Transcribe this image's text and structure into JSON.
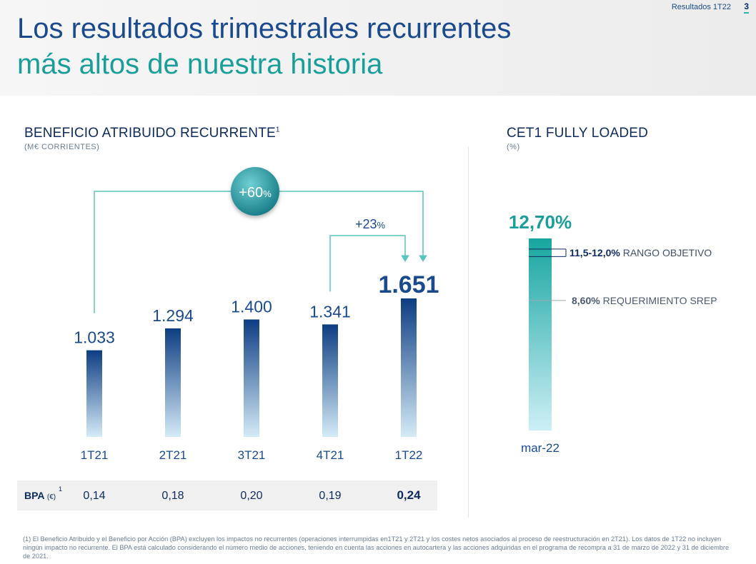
{
  "header": {
    "title_line1": "Los resultados trimestrales recurrentes",
    "title_line2": "más altos de nuestra historia",
    "section": "Resultados 1T22",
    "page": "3"
  },
  "left_panel": {
    "title": "BENEFICIO ATRIBUIDO RECURRENTE",
    "title_sup": "1",
    "subtitle": "(M€ CORRIENTES)"
  },
  "right_panel": {
    "title": "CET1 FULLY LOADED",
    "subtitle": "(%)"
  },
  "chart_data": [
    {
      "type": "bar",
      "title": "BENEFICIO ATRIBUIDO RECURRENTE",
      "ylabel": "(M€ CORRIENTES)",
      "categories": [
        "1T21",
        "2T21",
        "3T21",
        "4T21",
        "1T22"
      ],
      "values": [
        1033,
        1294,
        1400,
        1341,
        1651
      ],
      "value_labels": [
        "1.033",
        "1.294",
        "1.400",
        "1.341",
        "1.651"
      ],
      "annotations": [
        {
          "from": "1T21",
          "to": "1T22",
          "label_main": "+60",
          "label_unit": "%"
        },
        {
          "from": "4T21",
          "to": "1T22",
          "label_main": "+23",
          "label_unit": "%"
        }
      ],
      "bpa": {
        "label": "BPA",
        "unit": "(€)",
        "sup": "1",
        "values": [
          "0,14",
          "0,18",
          "0,20",
          "0,19",
          "0,24"
        ]
      },
      "colors": {
        "bar_top": "#0d3d82",
        "bar_bottom": "#d4ebf7",
        "arrow": "#5bc3c0",
        "label": "#1a4a8c"
      }
    },
    {
      "type": "bar",
      "title": "CET1 FULLY LOADED",
      "ylabel": "(%)",
      "categories": [
        "mar-22"
      ],
      "values": [
        12.7
      ],
      "value_label": "12,70%",
      "ylim": [
        0,
        12.7
      ],
      "reference_lines": [
        {
          "value": 12.0,
          "label": "11,5-12,0%",
          "text": "RANGO OBJETIVO"
        },
        {
          "value": 11.5,
          "label": "",
          "text": ""
        },
        {
          "value": 8.6,
          "label": "8,60%",
          "text": "REQUERIMIENTO SREP"
        }
      ],
      "colors": {
        "bar_top": "#18a6a0",
        "bar_bottom": "#cdeff6",
        "value": "#1a9e9a"
      }
    }
  ],
  "footnote": "(1) El Beneficio Atribuido y el Beneficio por Acción (BPA) excluyen los impactos no recurrentes (operaciones interrumpidas en1T21 y 2T21 y los costes netos asociados al proceso de reestructuración en 2T21). Los datos de 1T22 no incluyen ningún impacto no recurrente. El BPA está calculado considerando el número medio de acciones, teniendo en cuenta las acciones en autocartera y las acciones adquiridas en el programa de recompra a 31 de marzo de 2022 y 31 de diciembre de 2021."
}
